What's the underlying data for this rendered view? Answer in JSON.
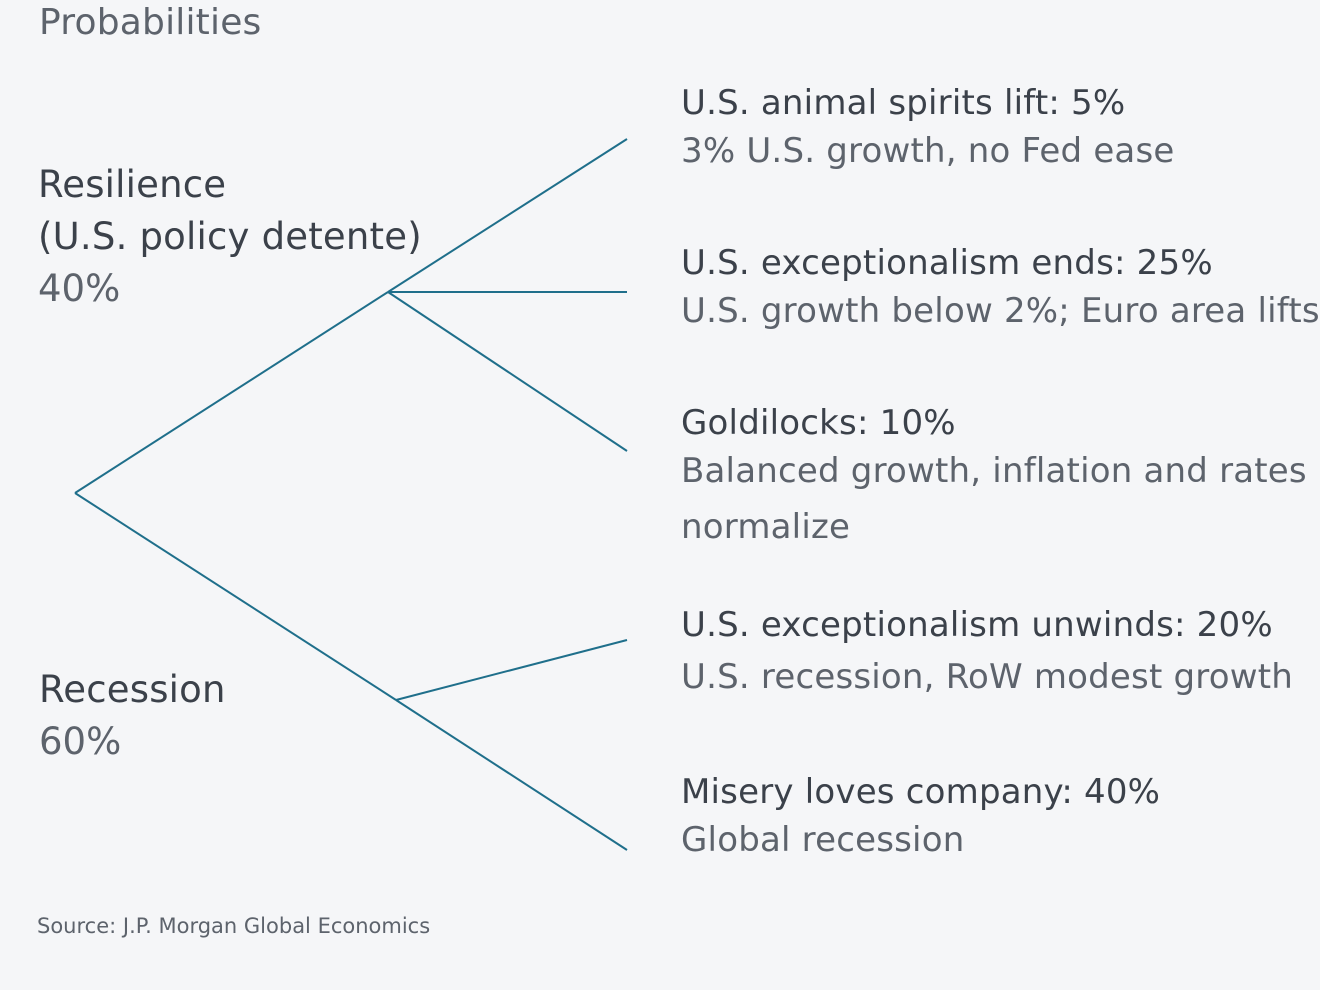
{
  "heading": "Probabilities",
  "branches": [
    {
      "title_line1": "Resilience",
      "title_line2": "(U.S. policy detente)",
      "probability": "40%"
    },
    {
      "title_line1": "Recession",
      "probability": "60%"
    }
  ],
  "scenarios": [
    {
      "title": "U.S. animal spirits lift: 5%",
      "description": [
        "3% U.S. growth, no Fed ease"
      ]
    },
    {
      "title": "U.S. exceptionalism ends: 25%",
      "description": [
        "U.S. growth below 2%; Euro area lifts"
      ]
    },
    {
      "title": "Goldilocks: 10%",
      "description": [
        "Balanced growth, inflation and rates",
        "normalize"
      ]
    },
    {
      "title": "U.S. exceptionalism unwinds: 20%",
      "description": [
        "U.S. recession, RoW modest growth"
      ]
    },
    {
      "title": "Misery loves company: 40%",
      "description": [
        "Global recession"
      ]
    }
  ],
  "source": "Source: J.P. Morgan Global Economics",
  "colors": {
    "line": "#1f6f8b",
    "background": "#f5f6f8"
  }
}
